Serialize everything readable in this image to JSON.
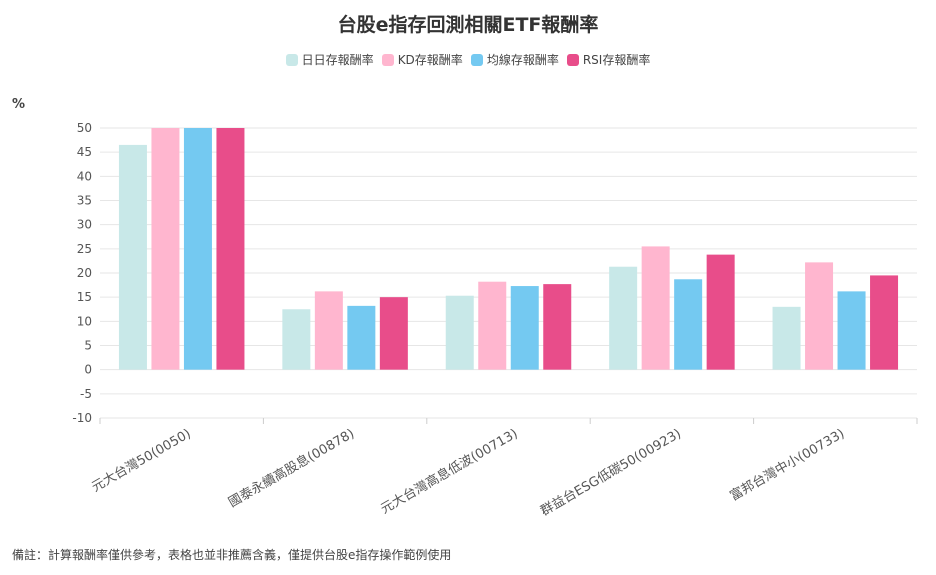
{
  "chart_data": {
    "type": "bar",
    "title": "台股e指存回測相關ETF報酬率",
    "ylabel": "%",
    "xlabel": "",
    "ylim": [
      -10,
      50
    ],
    "yticks": [
      50,
      45,
      40,
      35,
      30,
      25,
      20,
      15,
      10,
      5,
      0,
      -5,
      -10
    ],
    "grid": true,
    "legend_position": "top-center",
    "categories": [
      "元大台灣50(0050)",
      "國泰永續高股息(00878)",
      "元大台灣高息低波(00713)",
      "群益台ESG低碳50(00923)",
      "富邦台灣中小(00733)"
    ],
    "series": [
      {
        "name": "日日存報酬率",
        "color": "#c8e8e8",
        "values": [
          46.5,
          12.5,
          15.3,
          21.3,
          13.0
        ]
      },
      {
        "name": "KD存報酬率",
        "color": "#ffb6cf",
        "values": [
          50,
          16.2,
          18.2,
          25.5,
          22.2
        ]
      },
      {
        "name": "均線存報酬率",
        "color": "#74c9f1",
        "values": [
          50,
          13.2,
          17.3,
          18.7,
          16.2
        ]
      },
      {
        "name": "RSI存報酬率",
        "color": "#e84d8a",
        "values": [
          50,
          15.0,
          17.7,
          23.8,
          19.5
        ]
      }
    ]
  },
  "footnote": "備註：計算報酬率僅供參考，表格也並非推薦含義，僅提供台股e指存操作範例使用"
}
